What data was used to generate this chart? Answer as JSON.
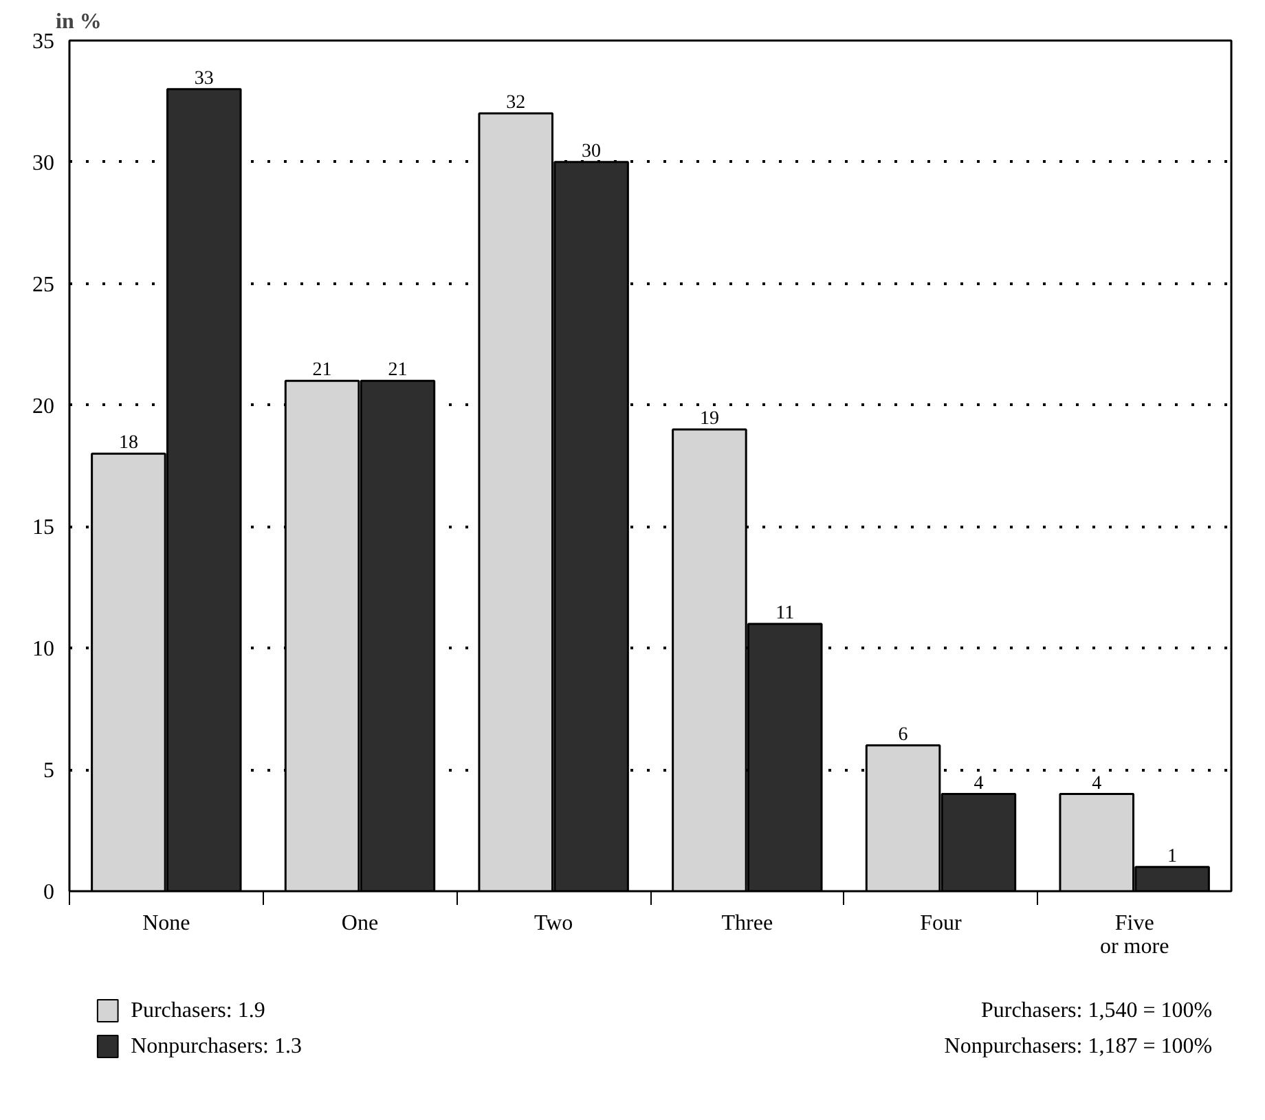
{
  "chart_data": {
    "type": "bar",
    "ylabel": "in %",
    "categories": [
      "None",
      "One",
      "Two",
      "Three",
      "Four",
      "Five\nor more"
    ],
    "series": [
      {
        "name": "Purchasers: 1.9",
        "color": "#d4d4d4",
        "values": [
          18,
          21,
          32,
          19,
          6,
          4
        ]
      },
      {
        "name": "Nonpurchasers: 1.3",
        "color": "#2e2e2e",
        "values": [
          33,
          21,
          30,
          11,
          4,
          1
        ]
      }
    ],
    "ylim": [
      0,
      35
    ],
    "yticks": [
      0,
      5,
      10,
      15,
      20,
      25,
      30,
      35
    ],
    "grid": "y",
    "data_labels": true,
    "legend": "bottom left",
    "annotations": [
      "Purchasers: 1,540 = 100%",
      "Nonpurchasers: 1,187 = 100%"
    ]
  }
}
